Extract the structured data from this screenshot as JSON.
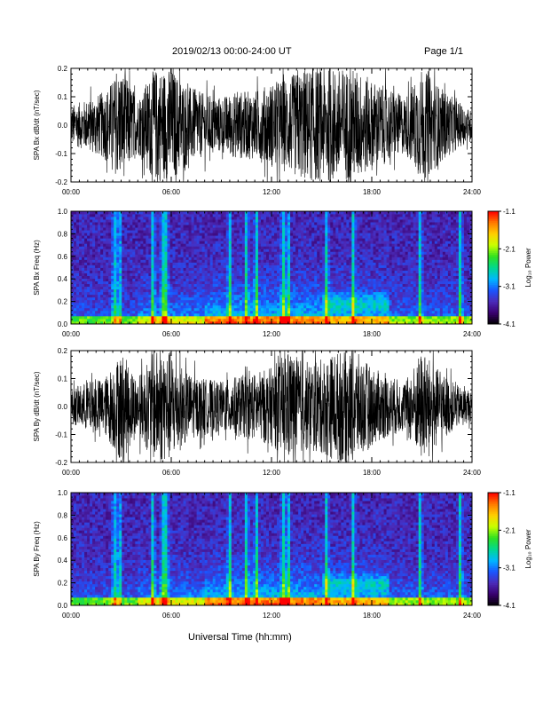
{
  "header": {
    "title": "2019/02/13  00:00-24:00 UT",
    "page_label": "Page 1/1"
  },
  "x_axis_title": "Universal Time (hh:mm)",
  "chart_data": [
    {
      "type": "line",
      "ylabel": "SPA Bx dB/dt (nT/sec)",
      "xlim": [
        0,
        24
      ],
      "ylim": [
        -0.2,
        0.2
      ],
      "yticks": [
        -0.2,
        -0.1,
        0.0,
        0.1,
        0.2
      ],
      "ytick_labels": [
        "-0.2",
        "-0.1",
        "0.0",
        "0.1",
        "0.2"
      ],
      "xticks": [
        0,
        6,
        12,
        18,
        24
      ],
      "xtick_labels": [
        "00:00",
        "06:00",
        "12:00",
        "18:00",
        "24:00"
      ],
      "series": [
        {
          "x": [
            0,
            1,
            2,
            3,
            4,
            5,
            6,
            7,
            8,
            9,
            10,
            11,
            12,
            13,
            14,
            15,
            16,
            17,
            18,
            19,
            20,
            21,
            22,
            23,
            24
          ],
          "amplitude": [
            0.07,
            0.09,
            0.12,
            0.2,
            0.1,
            0.2,
            0.2,
            0.14,
            0.11,
            0.1,
            0.12,
            0.12,
            0.15,
            0.17,
            0.2,
            0.2,
            0.2,
            0.2,
            0.16,
            0.13,
            0.1,
            0.2,
            0.14,
            0.09,
            0.05
          ]
        }
      ],
      "color": "#000000"
    },
    {
      "type": "heatmap",
      "ylabel": "SPA Bx Freq (Hz)",
      "xlim": [
        0,
        24
      ],
      "ylim": [
        0.0,
        1.0
      ],
      "yticks": [
        0.0,
        0.2,
        0.4,
        0.6,
        0.8,
        1.0
      ],
      "ytick_labels": [
        "0.0",
        "0.2",
        "0.4",
        "0.6",
        "0.8",
        "1.0"
      ],
      "xticks": [
        0,
        6,
        12,
        18,
        24
      ],
      "xtick_labels": [
        "00:00",
        "06:00",
        "12:00",
        "18:00",
        "24:00"
      ],
      "colorbar": {
        "label": "Log₁₀ Power",
        "range": [
          -4.1,
          -1.1
        ],
        "ticks": [
          -1.1,
          -2.1,
          -3.1,
          -4.1
        ],
        "tick_labels": [
          "-1.1",
          "-2.1",
          "-3.1",
          "-4.1"
        ]
      },
      "bright_columns_hours": [
        2.6,
        2.9,
        4.9,
        5.5,
        5.7,
        9.5,
        10.5,
        11.1,
        12.7,
        13.0,
        15.3,
        16.9,
        20.9,
        23.3
      ]
    },
    {
      "type": "line",
      "ylabel": "SPA By dB/dt (nT/sec)",
      "xlim": [
        0,
        24
      ],
      "ylim": [
        -0.2,
        0.2
      ],
      "yticks": [
        -0.2,
        -0.1,
        0.0,
        0.1,
        0.2
      ],
      "ytick_labels": [
        "-0.2",
        "-0.1",
        "0.0",
        "0.1",
        "0.2"
      ],
      "xticks": [
        0,
        6,
        12,
        18,
        24
      ],
      "xtick_labels": [
        "00:00",
        "06:00",
        "12:00",
        "18:00",
        "24:00"
      ],
      "series": [
        {
          "x": [
            0,
            1,
            2,
            3,
            4,
            5,
            6,
            7,
            8,
            9,
            10,
            11,
            12,
            13,
            14,
            15,
            16,
            17,
            18,
            19,
            20,
            21,
            22,
            23,
            24
          ],
          "amplitude": [
            0.06,
            0.09,
            0.1,
            0.2,
            0.1,
            0.2,
            0.2,
            0.12,
            0.1,
            0.09,
            0.11,
            0.12,
            0.14,
            0.2,
            0.16,
            0.17,
            0.2,
            0.2,
            0.14,
            0.11,
            0.09,
            0.2,
            0.13,
            0.08,
            0.05
          ]
        }
      ],
      "color": "#000000"
    },
    {
      "type": "heatmap",
      "ylabel": "SPA By Freq (Hz)",
      "xlim": [
        0,
        24
      ],
      "ylim": [
        0.0,
        1.0
      ],
      "yticks": [
        0.0,
        0.2,
        0.4,
        0.6,
        0.8,
        1.0
      ],
      "ytick_labels": [
        "0.0",
        "0.2",
        "0.4",
        "0.6",
        "0.8",
        "1.0"
      ],
      "xticks": [
        0,
        6,
        12,
        18,
        24
      ],
      "xtick_labels": [
        "00:00",
        "06:00",
        "12:00",
        "18:00",
        "24:00"
      ],
      "colorbar": {
        "label": "Log₁₀ Power",
        "range": [
          -4.1,
          -1.1
        ],
        "ticks": [
          -1.1,
          -2.1,
          -3.1,
          -4.1
        ],
        "tick_labels": [
          "-1.1",
          "-2.1",
          "-3.1",
          "-4.1"
        ]
      },
      "bright_columns_hours": [
        2.6,
        2.9,
        4.9,
        5.5,
        5.7,
        9.5,
        10.5,
        11.1,
        12.7,
        13.0,
        15.3,
        16.9,
        20.9,
        23.3
      ]
    }
  ],
  "colors": {
    "trace": "#000000",
    "colormap": [
      "#000000",
      "#3a006e",
      "#4b2ab8",
      "#1a55ff",
      "#00b8ff",
      "#00d890",
      "#30e020",
      "#c8ff00",
      "#ffd000",
      "#ff7a00",
      "#ff0000"
    ]
  }
}
